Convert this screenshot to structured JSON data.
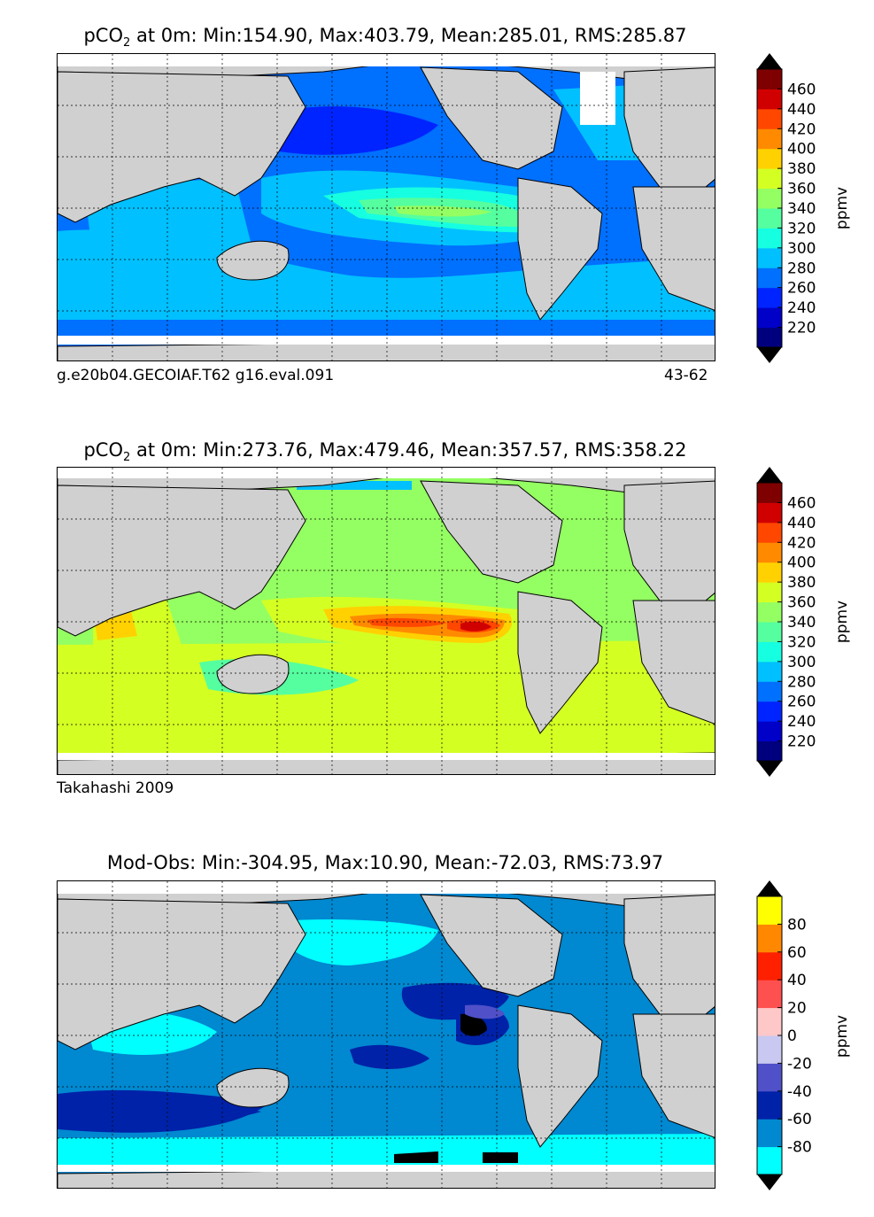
{
  "chart_data": [
    {
      "type": "heatmap",
      "title_var": "pCO",
      "title_sub": "2",
      "title_rest": " at 0m: Min:154.90, Max:403.79, Mean:285.01, RMS:285.87",
      "caption_left": "g.e20b04.GECOIAF.T62 g16.eval.091",
      "caption_right": "43-62",
      "colorbar_label": "ppmv",
      "colorbar_ticks": [
        "460",
        "440",
        "420",
        "400",
        "380",
        "360",
        "340",
        "320",
        "300",
        "280",
        "260",
        "240",
        "220"
      ],
      "levels": [
        200,
        220,
        240,
        260,
        280,
        300,
        320,
        340,
        360,
        380,
        400,
        420,
        440,
        460,
        480
      ],
      "colors": [
        "#00007f",
        "#0000c8",
        "#0024ff",
        "#0070ff",
        "#00c0ff",
        "#16ffe1",
        "#55ff9f",
        "#94ff62",
        "#d4ff23",
        "#ffd100",
        "#ff8a00",
        "#ff4700",
        "#d10000",
        "#7f0000"
      ],
      "extend": "both",
      "min": 154.9,
      "max": 403.79,
      "mean": 285.01,
      "rms": 285.87
    },
    {
      "type": "heatmap",
      "title_var": "pCO",
      "title_sub": "2",
      "title_rest": " at 0m: Min:273.76, Max:479.46, Mean:357.57, RMS:358.22",
      "caption_left": "Takahashi 2009",
      "caption_right": "",
      "colorbar_label": "ppmv",
      "colorbar_ticks": [
        "460",
        "440",
        "420",
        "400",
        "380",
        "360",
        "340",
        "320",
        "300",
        "280",
        "260",
        "240",
        "220"
      ],
      "levels": [
        200,
        220,
        240,
        260,
        280,
        300,
        320,
        340,
        360,
        380,
        400,
        420,
        440,
        460,
        480
      ],
      "colors": [
        "#00007f",
        "#0000c8",
        "#0024ff",
        "#0070ff",
        "#00c0ff",
        "#16ffe1",
        "#55ff9f",
        "#94ff62",
        "#d4ff23",
        "#ffd100",
        "#ff8a00",
        "#ff4700",
        "#d10000",
        "#7f0000"
      ],
      "extend": "both",
      "min": 273.76,
      "max": 479.46,
      "mean": 357.57,
      "rms": 358.22
    },
    {
      "type": "heatmap",
      "title_var": "Mod-Obs",
      "title_sub": "",
      "title_rest": ": Min:-304.95, Max:10.90, Mean:-72.03, RMS:73.97",
      "caption_left": "",
      "caption_right": "",
      "colorbar_label": "ppmv",
      "colorbar_ticks": [
        "80",
        "60",
        "40",
        "20",
        "0",
        "-20",
        "-40",
        "-60",
        "-80"
      ],
      "levels": [
        -100,
        -80,
        -60,
        -40,
        -20,
        0,
        20,
        40,
        60,
        80,
        100
      ],
      "colors": [
        "#00ffff",
        "#0088d0",
        "#0022a8",
        "#5050c8",
        "#c8c8f0",
        "#ffc8c8",
        "#ff5050",
        "#ff2000",
        "#ff8800",
        "#ffff00"
      ],
      "extend": "both",
      "min": -304.95,
      "max": 10.9,
      "mean": -72.03,
      "rms": 73.97
    }
  ]
}
